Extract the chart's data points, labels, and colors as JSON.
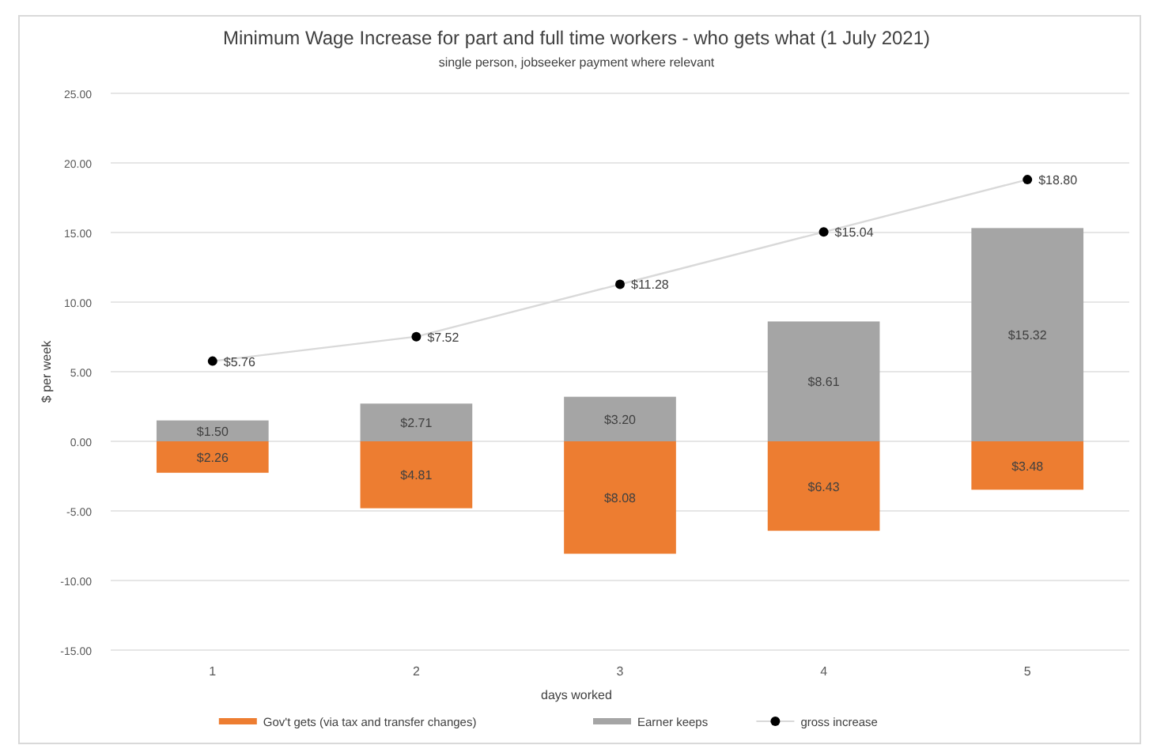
{
  "chart_data": {
    "type": "bar",
    "title": "Minimum Wage Increase for part and full time workers - who gets what (1 July 2021)",
    "subtitle": "single person, jobseeker payment where relevant",
    "xlabel": "days worked",
    "ylabel": "$ per week",
    "categories": [
      "1",
      "2",
      "3",
      "4",
      "5"
    ],
    "series": [
      {
        "name": "Gov't gets (via tax and transfer changes)",
        "color": "#ed7d31",
        "base": [
          -2.26,
          -4.81,
          -8.08,
          -6.43,
          -3.48
        ],
        "values": [
          2.26,
          4.81,
          8.08,
          6.43,
          3.48
        ],
        "value_labels": [
          "$2.26",
          "$4.81",
          "$8.08",
          "$6.43",
          "$3.48"
        ]
      },
      {
        "name": "Earner keeps",
        "color": "#a5a5a5",
        "values": [
          1.5,
          2.71,
          3.2,
          8.61,
          15.32
        ],
        "value_labels": [
          "$1.50",
          "$2.71",
          "$3.20",
          "$8.61",
          "$15.32"
        ]
      },
      {
        "name": "gross increase",
        "type": "line",
        "color": "#000000",
        "marker": "circle",
        "values": [
          5.76,
          7.52,
          11.28,
          15.04,
          18.8
        ],
        "value_labels": [
          "$5.76",
          "$7.52",
          "$11.28",
          "$15.04",
          "$18.80"
        ]
      }
    ],
    "ylim": [
      -15,
      25
    ],
    "yticks": [
      {
        "value": -15,
        "label": "-15.00"
      },
      {
        "value": -10,
        "label": "-10.00"
      },
      {
        "value": -5,
        "label": "-5.00"
      },
      {
        "value": 0,
        "label": "0.00"
      },
      {
        "value": 5,
        "label": "5.00"
      },
      {
        "value": 10,
        "label": "10.00"
      },
      {
        "value": 15,
        "label": "15.00"
      },
      {
        "value": 20,
        "label": "20.00"
      },
      {
        "value": 25,
        "label": "25.00"
      }
    ],
    "grid": "y",
    "legend": "bottom"
  }
}
